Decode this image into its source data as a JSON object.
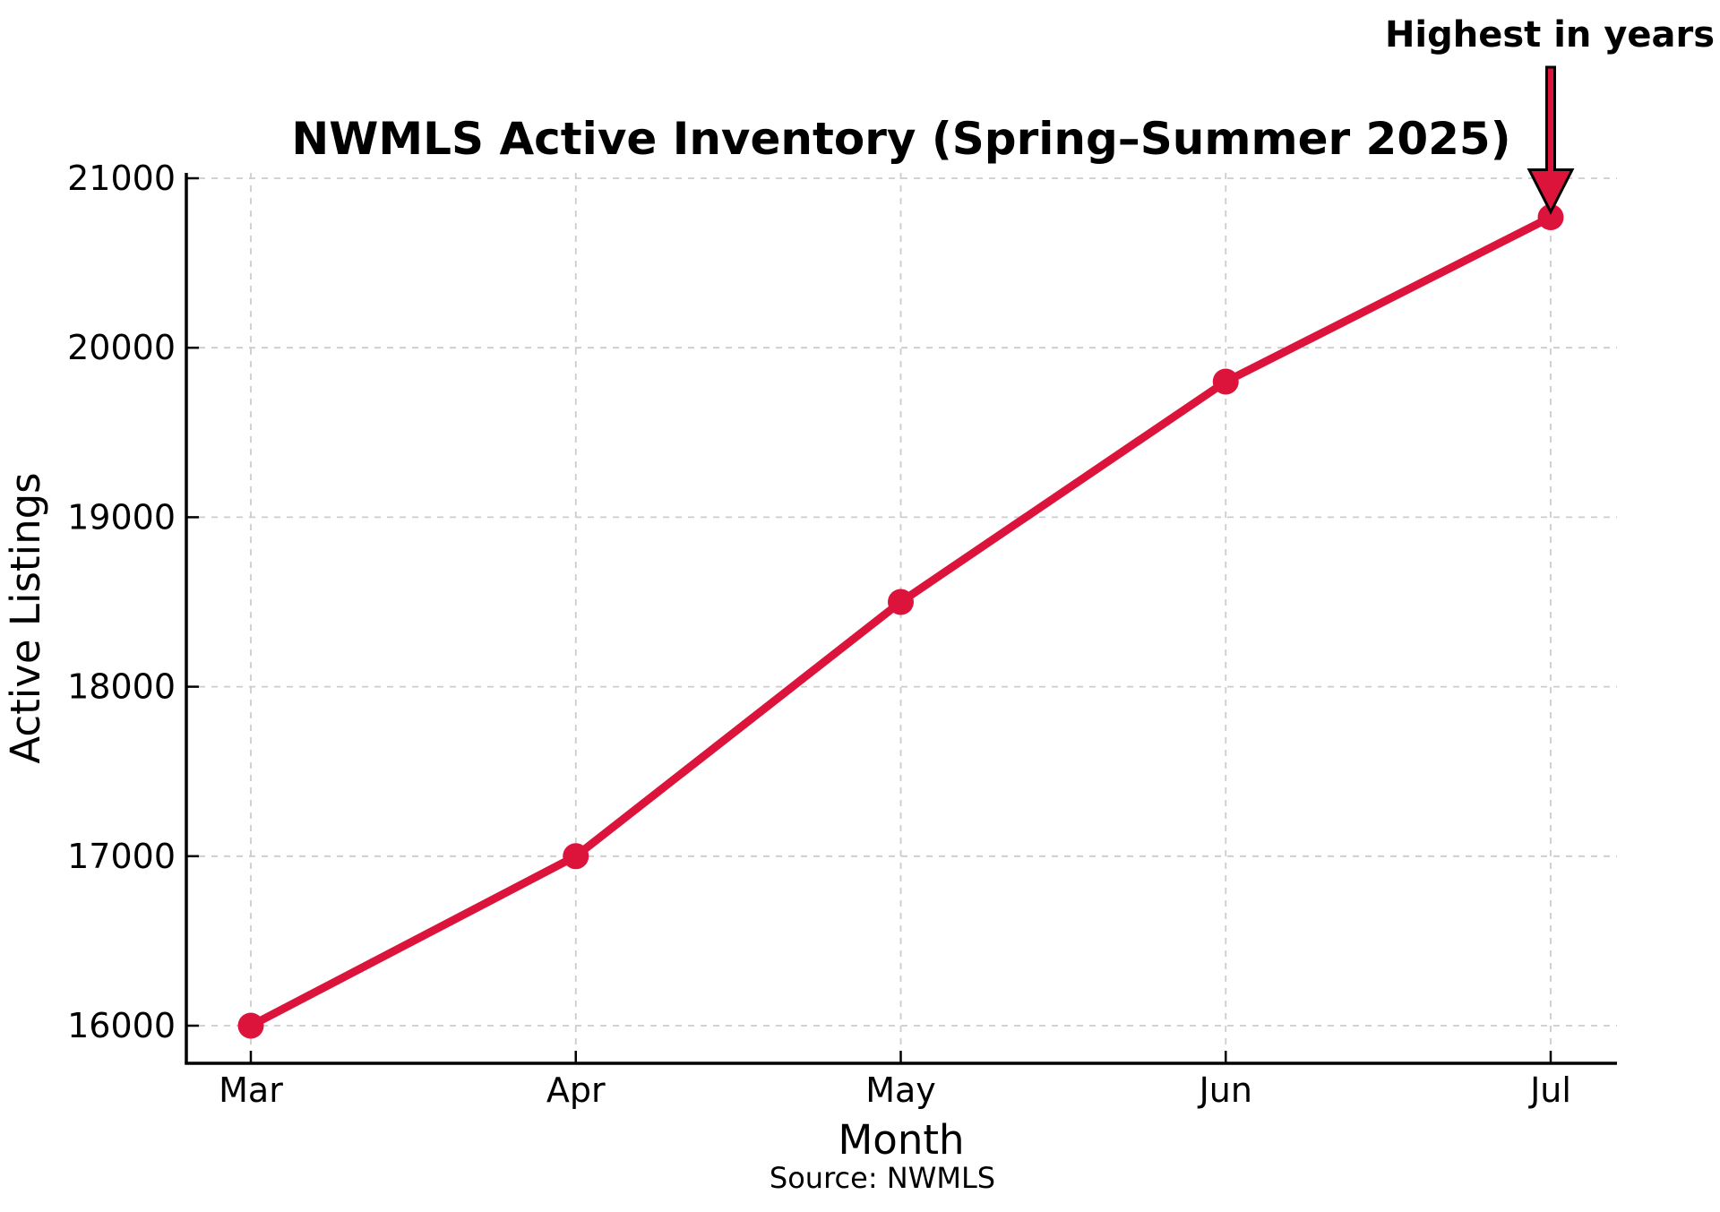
{
  "chart_data": {
    "type": "line",
    "title": "NWMLS Active Inventory (Spring–Summer 2025)",
    "xlabel": "Month",
    "ylabel": "Active Listings",
    "source": "Source: NWMLS",
    "annotation": "Highest in years",
    "categories": [
      "Mar",
      "Apr",
      "May",
      "Jun",
      "Jul"
    ],
    "series": [
      {
        "name": "Active Listings",
        "values": [
          16000,
          17000,
          18500,
          19800,
          20770
        ]
      }
    ],
    "yticks": [
      16000,
      17000,
      18000,
      19000,
      20000,
      21000
    ],
    "ylim": [
      15760,
      21010
    ],
    "grid": "dashed",
    "legend": "none",
    "annotation_target": {
      "category": "Jul",
      "value": 20770
    },
    "colors": {
      "line": "#DC143C",
      "marker": "#DC143C",
      "arrow_fill": "#DC143C",
      "arrow_edge": "#000000",
      "grid": "#cccccc",
      "axis": "#000000",
      "text": "#000000"
    }
  }
}
